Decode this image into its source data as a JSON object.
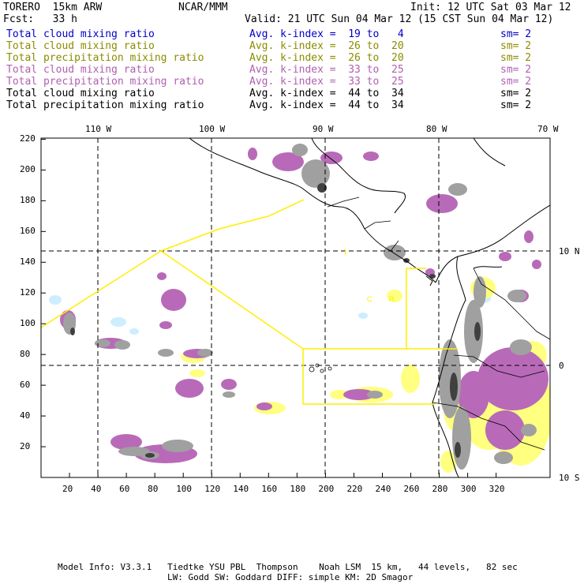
{
  "header": {
    "model": "TORERO  15km ARW",
    "org": "NCAR/MMM",
    "init": "Init: 12 UTC Sat 03 Mar 12",
    "fcst": "Fcst:   33 h",
    "valid": "Valid: 21 UTC Sun 04 Mar 12 (15 CST Sun 04 Mar 12)"
  },
  "legend": [
    {
      "field": "Total cloud mixing ratio",
      "k": "Avg. k-index =  19 to   4",
      "sm": "sm= 2",
      "color": "#0000cc"
    },
    {
      "field": "Total cloud mixing ratio",
      "k": "Avg. k-index =  26 to  20",
      "sm": "sm= 2",
      "color": "#8c8c00"
    },
    {
      "field": "Total precipitation mixing ratio",
      "k": "Avg. k-index =  26 to  20",
      "sm": "sm= 2",
      "color": "#8c8c00"
    },
    {
      "field": "Total cloud mixing ratio",
      "k": "Avg. k-index =  33 to  25",
      "sm": "sm= 2",
      "color": "#b05fb0"
    },
    {
      "field": "Total precipitation mixing ratio",
      "k": "Avg. k-index =  33 to  25",
      "sm": "sm= 2",
      "color": "#b05fb0"
    },
    {
      "field": "Total cloud mixing ratio",
      "k": "Avg. k-index =  44 to  34",
      "sm": "sm= 2",
      "color": "#000000"
    },
    {
      "field": "Total precipitation mixing ratio",
      "k": "Avg. k-index =  44 to  34",
      "sm": "sm= 2",
      "color": "#000000"
    }
  ],
  "axes": {
    "x_ticks": [
      "20",
      "40",
      "60",
      "80",
      "100",
      "120",
      "140",
      "160",
      "180",
      "200",
      "220",
      "240",
      "260",
      "280",
      "300",
      "320"
    ],
    "y_ticks": [
      "20",
      "40",
      "60",
      "80",
      "100",
      "120",
      "140",
      "160",
      "180",
      "200",
      "220"
    ],
    "lon_labels": [
      "110 W",
      "100 W",
      "90 W",
      "80 W",
      "70 W"
    ],
    "lat_labels": [
      "10 N",
      "0",
      "10 S"
    ]
  },
  "footer": {
    "line1": "Model Info: V3.3.1   Tiedtke YSU PBL  Thompson    Noah LSM  15 km,   44 levels,   82 sec",
    "line2": "LW: Godd SW: Goddard DIFF: simple KM: 2D Smagor"
  },
  "colors": {
    "light_blue": "#cceeff",
    "yellow": "#ffff80",
    "purple": "#b86ab8",
    "gray": "#a0a0a0",
    "dark": "#404040",
    "domain_line": "#ffee00"
  }
}
